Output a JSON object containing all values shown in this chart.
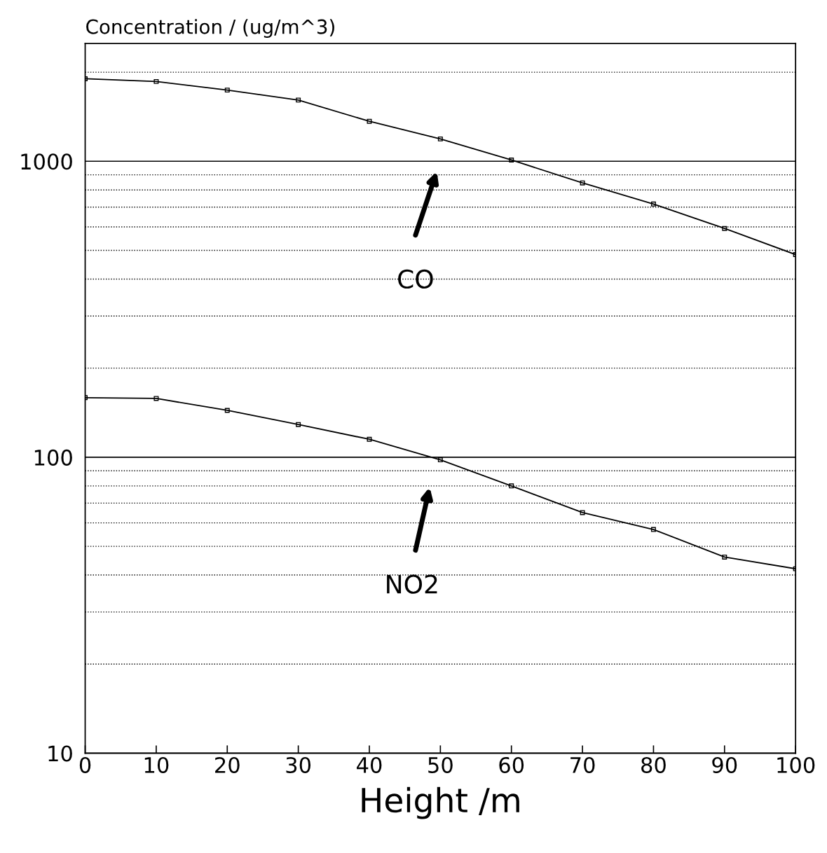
{
  "chart_data": {
    "type": "line",
    "xlabel": "Height /m",
    "ylabel": "Concentration / (ug/m^3)",
    "x": [
      0,
      10,
      20,
      30,
      40,
      50,
      60,
      70,
      80,
      90,
      100
    ],
    "series": [
      {
        "color": "#000000",
        "values": [
          1900,
          1860,
          1740,
          1610,
          1365,
          1190,
          1010,
          845,
          717,
          593,
          484
        ]
      },
      {
        "color": "#000000",
        "values": [
          159,
          158,
          144,
          129,
          115,
          98,
          80,
          65,
          57,
          46,
          42
        ]
      }
    ],
    "log": "y",
    "marker": "square",
    "line_style": "solid",
    "grid": "y",
    "xlim": [
      0,
      100
    ],
    "xticks": [
      0,
      10,
      20,
      30,
      40,
      50,
      60,
      70,
      80,
      90,
      100
    ],
    "ylim": [
      10,
      2500
    ],
    "yticks": [
      10,
      {
        "value": 20,
        "label": null
      },
      {
        "value": 30,
        "label": null
      },
      {
        "value": 40,
        "label": null
      },
      {
        "value": 50,
        "label": null
      },
      {
        "value": 60,
        "label": null
      },
      {
        "value": 70,
        "label": null
      },
      {
        "value": 80,
        "label": null
      },
      {
        "value": 90,
        "label": null
      },
      100,
      {
        "value": 200,
        "label": null
      },
      {
        "value": 300,
        "label": null
      },
      {
        "value": 400,
        "label": null
      },
      {
        "value": 500,
        "label": null
      },
      {
        "value": 600,
        "label": null
      },
      {
        "value": 700,
        "label": null
      },
      {
        "value": 800,
        "label": null
      },
      {
        "value": 900,
        "label": null
      },
      1000,
      {
        "value": 2000,
        "label": null
      }
    ],
    "annotations": [
      "CO",
      "NO2"
    ]
  }
}
